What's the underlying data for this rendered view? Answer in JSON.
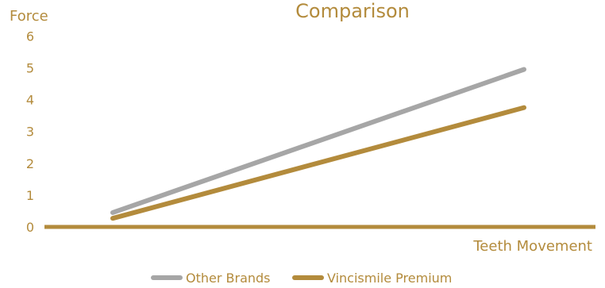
{
  "chart_data": {
    "type": "line",
    "title": "Comparison",
    "ylabel": "Force",
    "xlabel": "Teeth Movement",
    "ylim": [
      0,
      6
    ],
    "yticks": [
      0,
      1,
      2,
      3,
      4,
      5,
      6
    ],
    "x": [
      0,
      1
    ],
    "series": [
      {
        "name": "Other Brands",
        "values": [
          0.45,
          4.95
        ],
        "color": "#a6a6a6"
      },
      {
        "name": "Vincismile Premium",
        "values": [
          0.27,
          3.75
        ],
        "color": "#b38b3c"
      }
    ],
    "legend": "bottom-center",
    "grid": false
  },
  "colors": {
    "text": "#b38b3c",
    "axis": "#b38b3c"
  }
}
